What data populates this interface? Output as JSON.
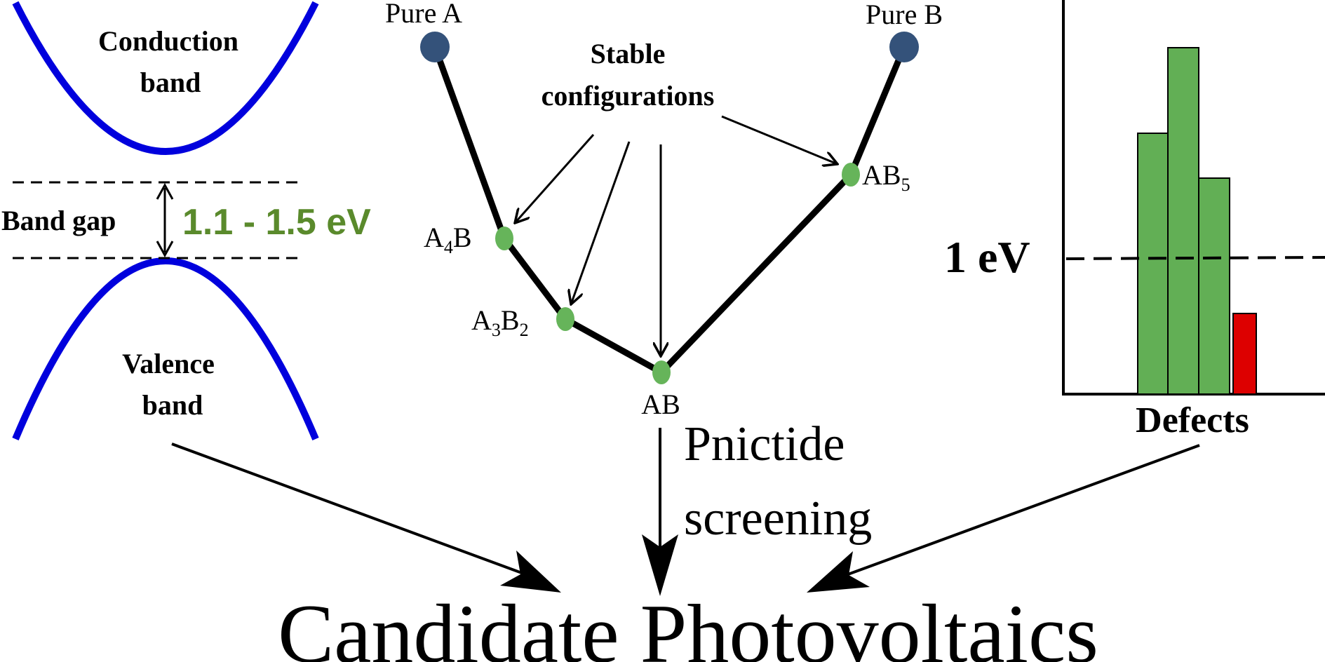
{
  "band_panel": {
    "conduction_line1": "Conduction",
    "conduction_line2": "band",
    "valence_line1": "Valence",
    "valence_line2": "band",
    "band_gap_label": "Band gap",
    "band_gap_value": "1.1 - 1.5 eV",
    "band_color": "#0000dd",
    "value_color": "#5a8a2c"
  },
  "hull_panel": {
    "pure_a": "Pure A",
    "pure_b": "Pure B",
    "stable_line1": "Stable",
    "stable_line2": "configurations",
    "a4b": {
      "base": "A",
      "s1": "4",
      "rest": "B",
      "s2": ""
    },
    "a3b2": {
      "base": "A",
      "s1": "3",
      "rest": "B",
      "s2": "2"
    },
    "ab": "AB",
    "ab5": {
      "base": "AB",
      "s1": "5"
    },
    "pure_node_color": "#34527a",
    "stable_node_color": "#66b45a"
  },
  "defect_panel": {
    "threshold_label": "1 eV",
    "axis_label": "Defects",
    "bar_colors": [
      "#62af55",
      "#62af55",
      "#62af55",
      "#dd0000"
    ]
  },
  "screening_line1": "Pnictide",
  "screening_line2": "screening",
  "result_title": "Candidate Photovoltaics"
}
